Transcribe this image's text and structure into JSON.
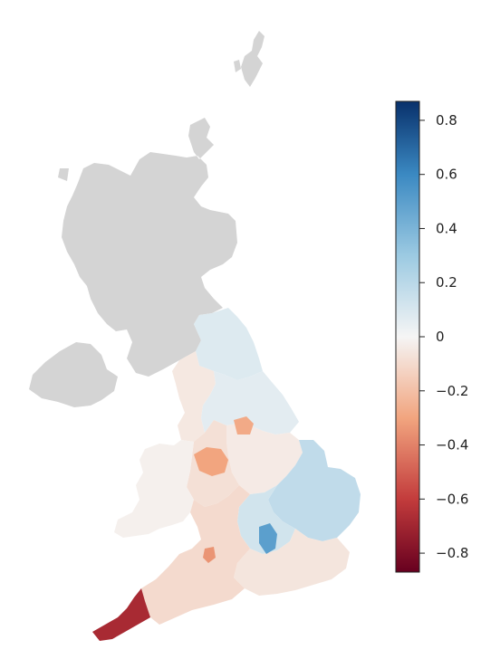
{
  "map": {
    "no_data_color": "#d4d4d4",
    "regions": [
      {
        "name": "northern-isles",
        "value": null
      },
      {
        "name": "scotland",
        "value": null
      },
      {
        "name": "northern-ireland",
        "value": null
      },
      {
        "name": "north-east-england",
        "value": 0.08
      },
      {
        "name": "north-west-england",
        "value": -0.05
      },
      {
        "name": "yorkshire",
        "value": 0.06
      },
      {
        "name": "east-midlands",
        "value": -0.04
      },
      {
        "name": "west-midlands",
        "value": -0.08
      },
      {
        "name": "wales",
        "value": -0.02
      },
      {
        "name": "east-of-england",
        "value": 0.18
      },
      {
        "name": "london-area",
        "value": 0.12
      },
      {
        "name": "south-east-england",
        "value": -0.06
      },
      {
        "name": "south-west-england",
        "value": -0.1
      },
      {
        "name": "cornwall",
        "value": -0.68
      },
      {
        "name": "cheshire-area",
        "value": -0.3
      },
      {
        "name": "south-yorkshire-area",
        "value": -0.28
      },
      {
        "name": "central-hotspot",
        "value": 0.5
      },
      {
        "name": "bristol-area",
        "value": -0.35
      }
    ]
  },
  "colorbar": {
    "min": -0.87,
    "max": 0.87,
    "stops": [
      {
        "v": -0.87,
        "color": "#67001f"
      },
      {
        "v": -0.6,
        "color": "#c33c3c"
      },
      {
        "v": -0.3,
        "color": "#f2a57f"
      },
      {
        "v": 0.0,
        "color": "#f5f5f5"
      },
      {
        "v": 0.3,
        "color": "#9ccae2"
      },
      {
        "v": 0.6,
        "color": "#3b89c2"
      },
      {
        "v": 0.87,
        "color": "#08306b"
      }
    ],
    "ticks": [
      {
        "value": 0.8,
        "label": "0.8"
      },
      {
        "value": 0.6,
        "label": "0.6"
      },
      {
        "value": 0.4,
        "label": "0.4"
      },
      {
        "value": 0.2,
        "label": "0.2"
      },
      {
        "value": 0,
        "label": "0"
      },
      {
        "value": -0.2,
        "label": "−0.2"
      },
      {
        "value": -0.4,
        "label": "−0.4"
      },
      {
        "value": -0.6,
        "label": "−0.6"
      },
      {
        "value": -0.8,
        "label": "−0.8"
      }
    ]
  }
}
